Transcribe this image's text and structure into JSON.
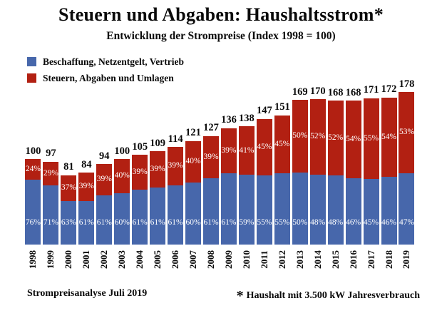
{
  "title": "Steuern und Abgaben: Haushaltsstrom*",
  "subtitle": "Entwicklung der Strompreise (Index 1998 = 100)",
  "legend": [
    {
      "label": "Beschaffung, Netzentgelt, Vertrieb",
      "color": "#4767ab"
    },
    {
      "label": "Steuern, Abgaben und Umlagen",
      "color": "#b22012"
    }
  ],
  "footer": {
    "left": "Strompreisanalyse Juli 2019",
    "right_asterisk": "*",
    "right_text": "Haushalt mit 3.500 kW Jahresverbrauch"
  },
  "chart_data": {
    "type": "bar",
    "stacked": true,
    "title": "Steuern und Abgaben: Haushaltsstrom*",
    "subtitle": "Entwicklung der Strompreise (Index 1998 = 100)",
    "xlabel": "",
    "ylabel": "Index (1998 = 100)",
    "ylim": [
      0,
      185
    ],
    "grid": false,
    "legend_position": "top-left",
    "categories": [
      "1998",
      "1999",
      "2000",
      "2001",
      "2002",
      "2003",
      "2004",
      "2005",
      "2006",
      "2007",
      "2008",
      "2009",
      "2010",
      "2011",
      "2012",
      "2013",
      "2014",
      "2015",
      "2016",
      "2017",
      "2018",
      "2019"
    ],
    "totals": [
      100,
      97,
      81,
      84,
      94,
      100,
      105,
      109,
      114,
      121,
      127,
      136,
      138,
      147,
      151,
      169,
      170,
      168,
      168,
      171,
      172,
      178
    ],
    "series": [
      {
        "name": "Beschaffung, Netzentgelt, Vertrieb",
        "color": "#4767ab",
        "percent": [
          76,
          71,
          63,
          61,
          61,
          60,
          61,
          61,
          61,
          60,
          61,
          61,
          59,
          55,
          55,
          50,
          48,
          48,
          46,
          45,
          46,
          47
        ]
      },
      {
        "name": "Steuern, Abgaben und Umlagen",
        "color": "#b22012",
        "percent": [
          24,
          29,
          37,
          39,
          39,
          40,
          39,
          39,
          39,
          40,
          39,
          39,
          41,
          45,
          45,
          50,
          52,
          52,
          54,
          55,
          54,
          53
        ]
      }
    ],
    "value_labels": "totals shown above each bar",
    "segment_labels": "percent share shown inside each segment"
  }
}
